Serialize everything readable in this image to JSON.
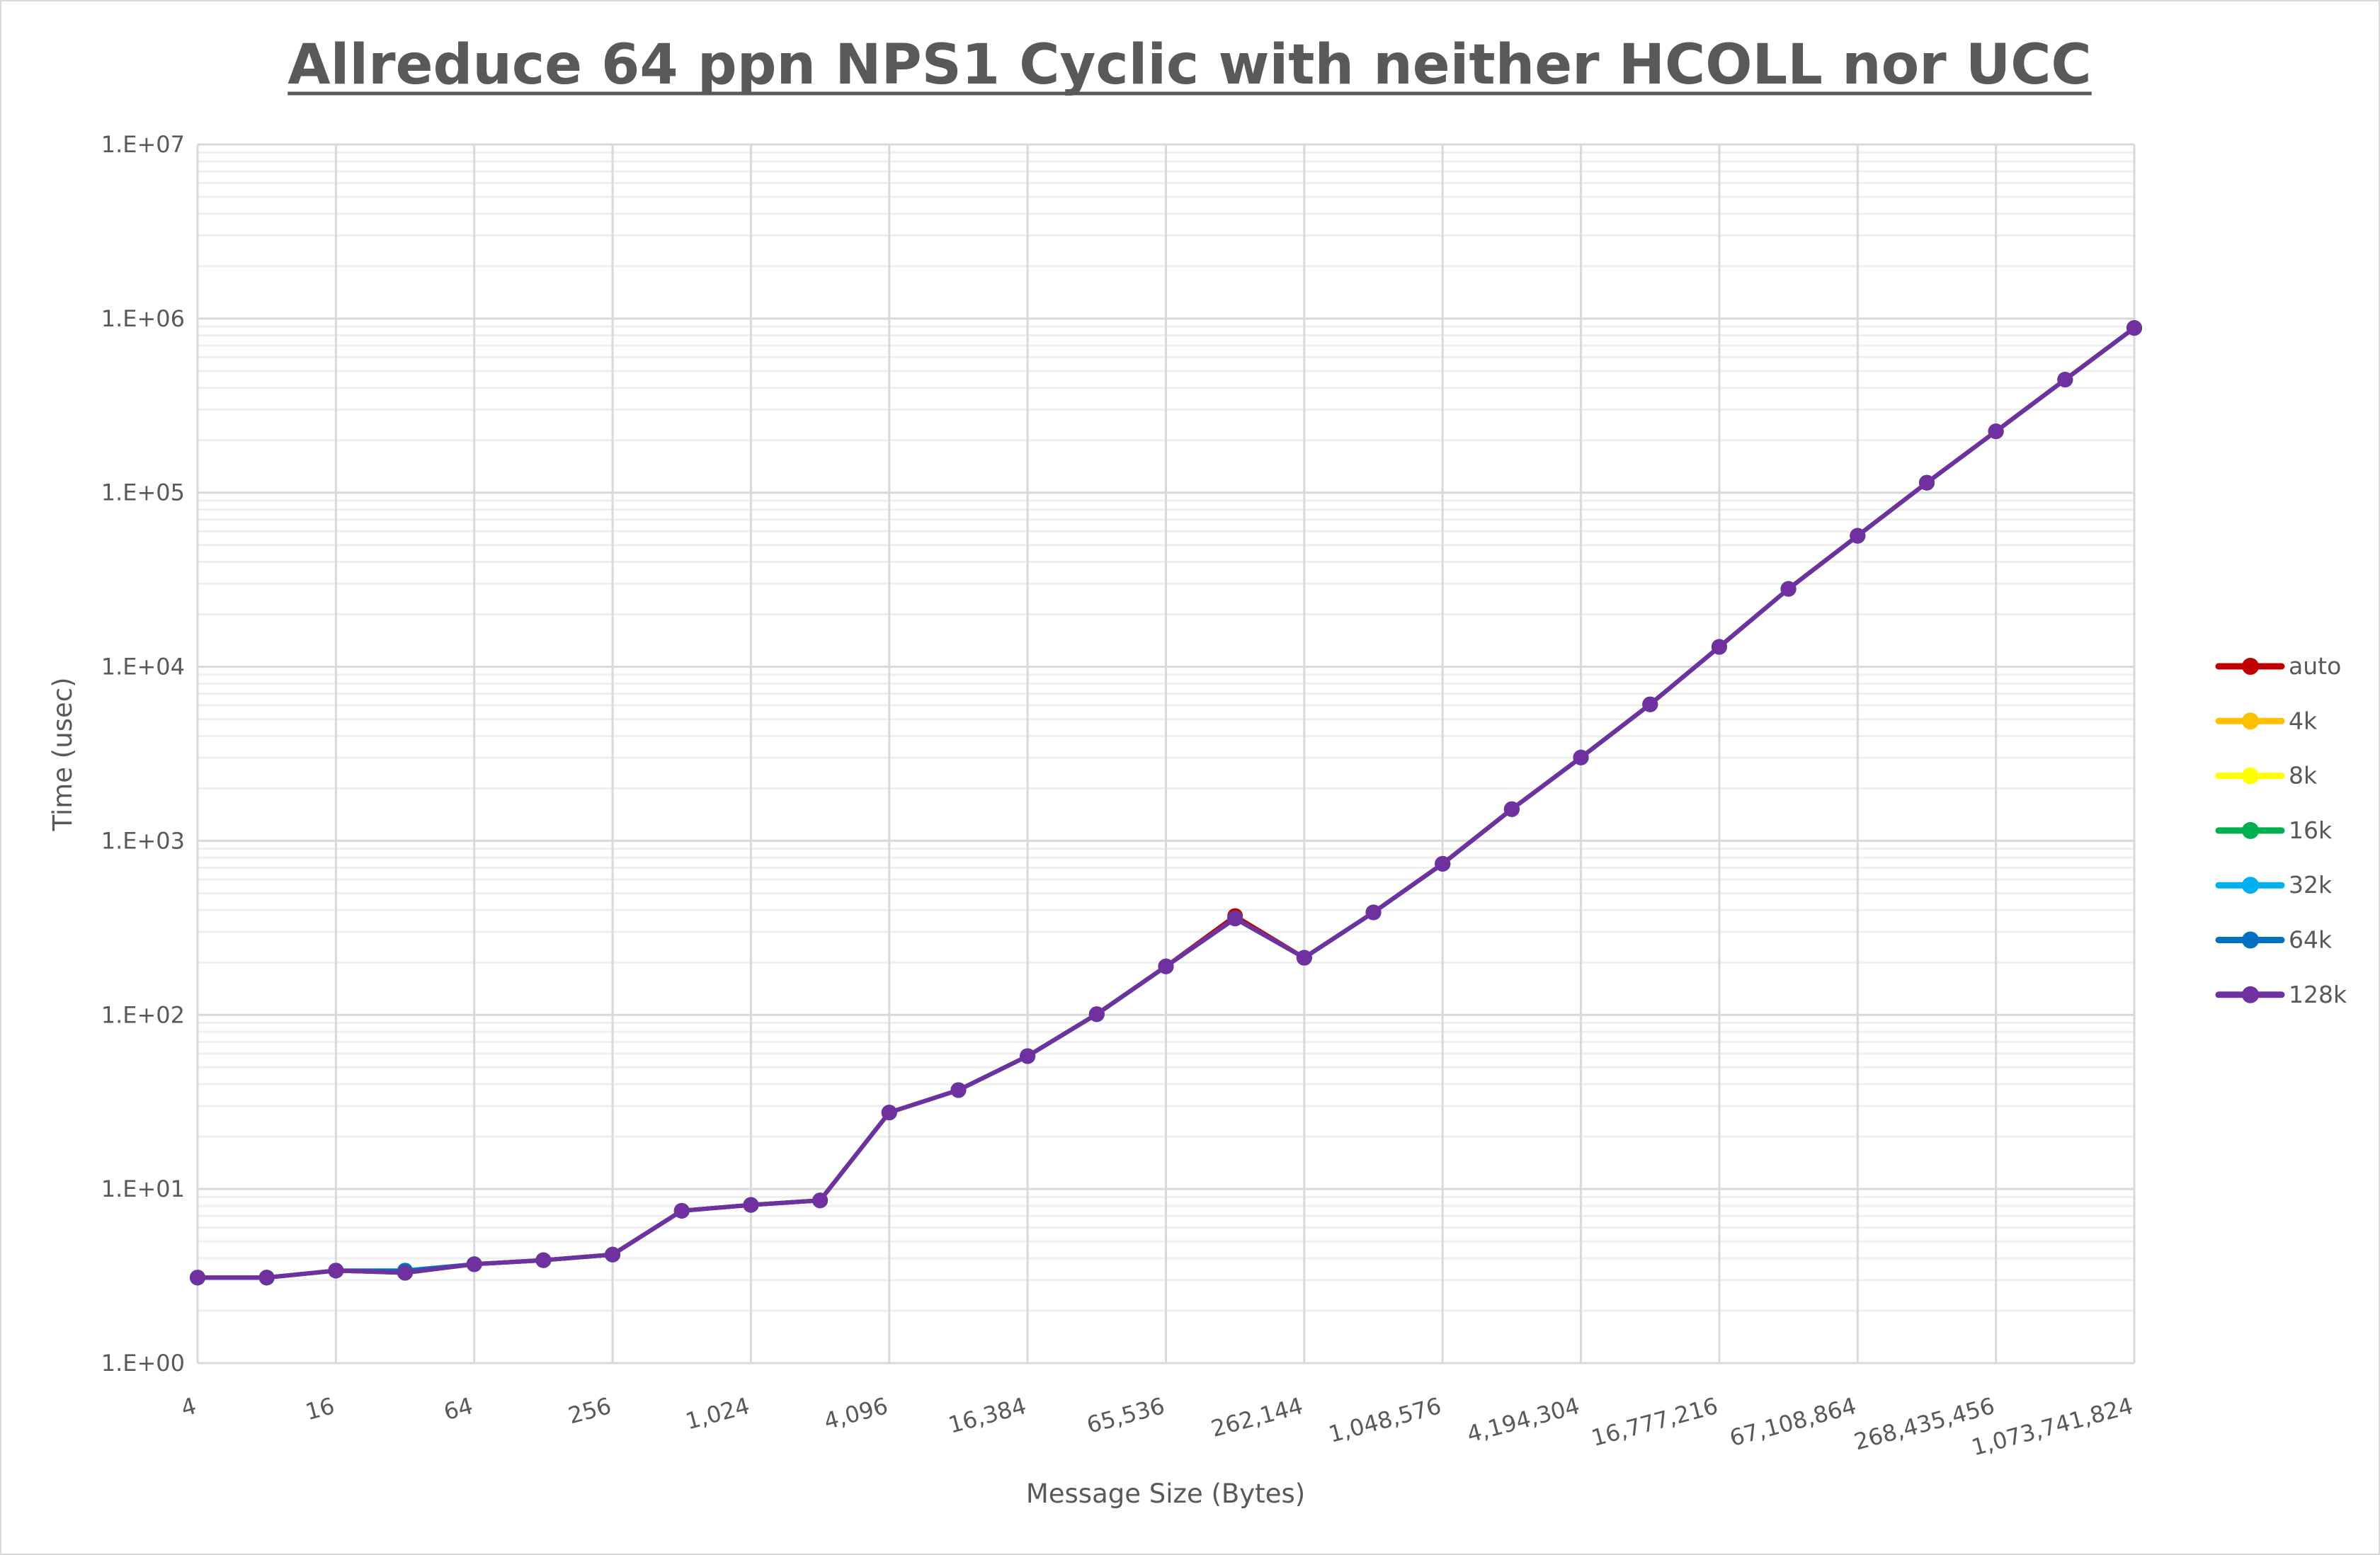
{
  "chart_data": {
    "type": "line",
    "title": "Allreduce 64 ppn NPS1 Cyclic with neither HCOLL nor UCC",
    "xlabel": "Message Size (Bytes)",
    "ylabel": "Time (usec)",
    "x_scale": "log2",
    "y_scale": "log10",
    "ylim": [
      1,
      10000000
    ],
    "grid": true,
    "legend_position": "right",
    "x": [
      4,
      8,
      16,
      32,
      64,
      128,
      256,
      512,
      1024,
      2048,
      4096,
      8192,
      16384,
      32768,
      65536,
      131072,
      262144,
      524288,
      1048576,
      2097152,
      4194304,
      8388608,
      16777216,
      33554432,
      67108864,
      134217728,
      268435456,
      536870912,
      1073741824
    ],
    "x_tick_labels": [
      "4",
      "16",
      "64",
      "256",
      "1,024",
      "4,096",
      "16,384",
      "65,536",
      "262,144",
      "1,048,576",
      "4,194,304",
      "16,777,216",
      "67,108,864",
      "268,435,456",
      "1,073,741,824"
    ],
    "y_tick_labels": [
      "1.E+00",
      "1.E+01",
      "1.E+02",
      "1.E+03",
      "1.E+04",
      "1.E+05",
      "1.E+06",
      "1.E+07"
    ],
    "series": [
      {
        "name": "auto",
        "color": "#C00000",
        "values": [
          3.1,
          3.1,
          3.4,
          3.3,
          3.7,
          3.9,
          4.2,
          7.5,
          8.1,
          8.6,
          27.5,
          37,
          58,
          101,
          190,
          370,
          213,
          388,
          738,
          1520,
          3010,
          6080,
          13000,
          28000,
          56500,
          114000,
          225000,
          446000,
          883000
        ]
      },
      {
        "name": "4k",
        "color": "#FFC000",
        "values": [
          3.1,
          3.1,
          3.4,
          3.3,
          3.7,
          3.9,
          4.2,
          7.5,
          8.1,
          8.6,
          27.5,
          37,
          58,
          101,
          190,
          358,
          213,
          388,
          738,
          1520,
          3010,
          6080,
          13000,
          28000,
          56500,
          114000,
          225000,
          446000,
          883000
        ]
      },
      {
        "name": "8k",
        "color": "#FFFF00",
        "values": [
          3.1,
          3.1,
          3.4,
          3.3,
          3.7,
          3.9,
          4.2,
          7.5,
          8.1,
          8.6,
          27.5,
          37,
          58,
          101,
          190,
          358,
          213,
          388,
          738,
          1520,
          3010,
          6080,
          13000,
          28000,
          56500,
          114000,
          225000,
          446000,
          883000
        ]
      },
      {
        "name": "16k",
        "color": "#00B050",
        "values": [
          3.1,
          3.1,
          3.4,
          3.3,
          3.7,
          3.9,
          4.2,
          7.5,
          8.1,
          8.6,
          27.5,
          37,
          58,
          101,
          190,
          358,
          213,
          388,
          738,
          1520,
          3010,
          6080,
          13000,
          28000,
          56500,
          114000,
          225000,
          446000,
          883000
        ]
      },
      {
        "name": "32k",
        "color": "#00B0F0",
        "values": [
          3.1,
          3.1,
          3.4,
          3.4,
          3.7,
          3.9,
          4.2,
          7.5,
          8.1,
          8.6,
          27.5,
          37,
          58,
          101,
          190,
          358,
          213,
          388,
          738,
          1520,
          3010,
          6080,
          13000,
          28000,
          56500,
          114000,
          225000,
          446000,
          883000
        ]
      },
      {
        "name": "64k",
        "color": "#0070C0",
        "values": [
          3.1,
          3.1,
          3.4,
          3.4,
          3.7,
          3.9,
          4.2,
          7.5,
          8.1,
          8.6,
          27.5,
          37,
          58,
          101,
          190,
          358,
          213,
          388,
          738,
          1520,
          3010,
          6080,
          13000,
          28000,
          56500,
          114000,
          225000,
          446000,
          883000
        ]
      },
      {
        "name": "128k",
        "color": "#7030A0",
        "values": [
          3.1,
          3.1,
          3.4,
          3.3,
          3.7,
          3.9,
          4.2,
          7.5,
          8.1,
          8.6,
          27.5,
          37,
          58,
          101,
          190,
          358,
          213,
          388,
          738,
          1520,
          3010,
          6080,
          13000,
          28000,
          56500,
          114000,
          225000,
          446000,
          883000
        ]
      }
    ]
  }
}
